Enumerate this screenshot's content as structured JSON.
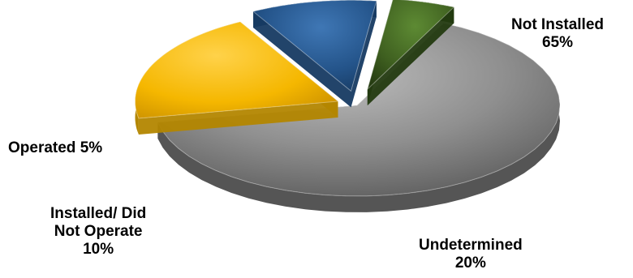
{
  "chart_data": {
    "type": "pie",
    "title": "",
    "slices": [
      {
        "name": "Not Installed",
        "value": 65,
        "value_label": "65%",
        "color": "#8c8c8c"
      },
      {
        "name": "Undetermined",
        "value": 20,
        "value_label": "20%",
        "color": "#f5b700"
      },
      {
        "name": "Installed/ Did Not Operate",
        "value": 10,
        "value_label": "10%",
        "color": "#24548a"
      },
      {
        "name": "Operated",
        "value": 5,
        "value_label": "5%",
        "color": "#3f6020"
      }
    ],
    "labels": {
      "not_installed": {
        "line1": "Not Installed",
        "line2": "65%"
      },
      "undetermined": {
        "line1": "Undetermined",
        "line2": "20%"
      },
      "installed_did_not_operate": {
        "line1": "Installed/ Did",
        "line2": "Not Operate",
        "line3": "10%"
      },
      "operated": {
        "line1": "Operated 5%"
      }
    },
    "style": "3d-exploded",
    "legend": "none"
  }
}
